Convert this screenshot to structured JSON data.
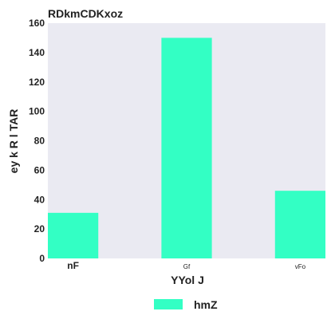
{
  "chart_data": {
    "type": "bar",
    "title": "RDkmCDKxoz",
    "xlabel": "YYol J",
    "ylabel": "ey k R l TAR",
    "categories": [
      "nF",
      "Gf",
      "vFo"
    ],
    "series": [
      {
        "name": "hmZ",
        "values": [
          31,
          150,
          46
        ]
      }
    ],
    "ylim": [
      0,
      160
    ],
    "yticks": [
      0,
      20,
      40,
      60,
      80,
      100,
      120,
      140,
      160
    ],
    "grid": false,
    "legend_position": "bottom-center",
    "colors": {
      "bar": "#33ffc4",
      "plot_background": "#eaeaf2"
    }
  }
}
